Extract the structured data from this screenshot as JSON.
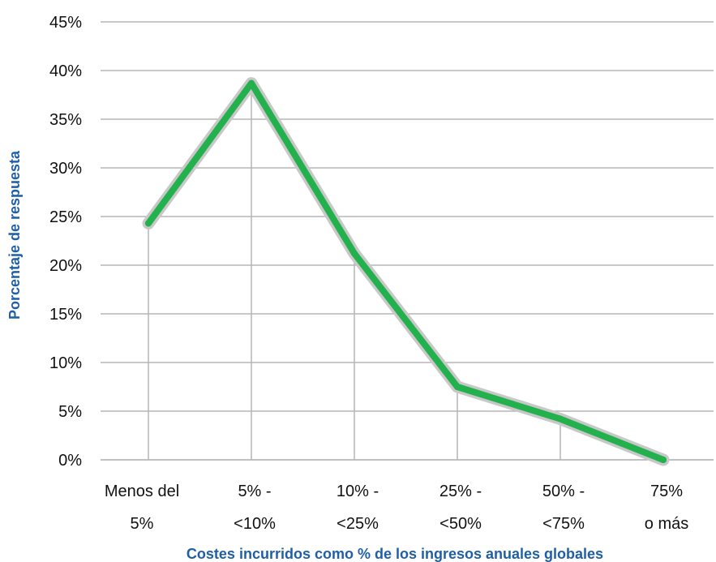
{
  "chart_data": {
    "type": "line",
    "title": "",
    "xlabel": "Costes incurridos como % de los ingresos anuales globales",
    "ylabel": "Porcentaje de respuesta",
    "categories": [
      [
        "Menos del",
        "5%"
      ],
      [
        "5% -",
        "<10%"
      ],
      [
        "10% -",
        "<25%"
      ],
      [
        "25% -",
        "<50%"
      ],
      [
        "50% -",
        "<75%"
      ],
      [
        "75%",
        "o más"
      ]
    ],
    "values": [
      24.3,
      38.7,
      21.2,
      7.5,
      4.2,
      0.0
    ],
    "y_ticks": [
      "0%",
      "5%",
      "10%",
      "15%",
      "20%",
      "25%",
      "30%",
      "35%",
      "40%",
      "45%"
    ],
    "ylim": [
      0,
      45
    ],
    "y_unit": "%",
    "grid": true,
    "line_color": "#22b14c",
    "halo_color": "#c8c8c8",
    "label_color": "#1f5fa8"
  }
}
